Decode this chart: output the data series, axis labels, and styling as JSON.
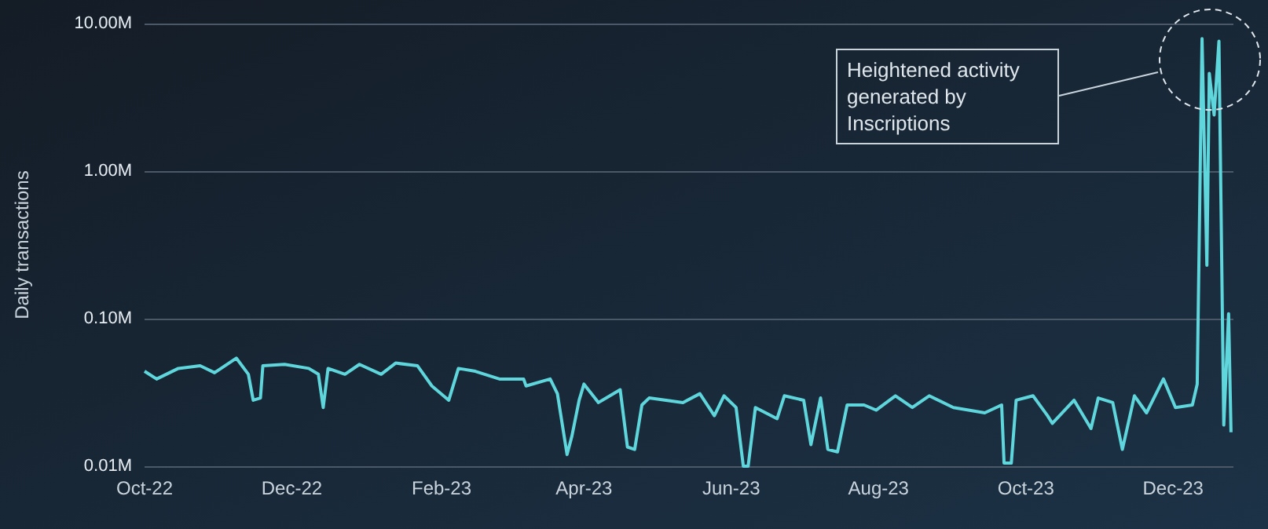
{
  "chart_data": {
    "type": "line",
    "ylabel": "Daily transactions",
    "log": true,
    "grid": "y",
    "marker": "none",
    "ylim": [
      0.01,
      10
    ],
    "yticks": [
      {
        "value": 0.01,
        "label": "0.01M"
      },
      {
        "value": 0.1,
        "label": "0.10M"
      },
      {
        "value": 1,
        "label": "1.00M"
      },
      {
        "value": 10,
        "label": "10.00M"
      }
    ],
    "xlim": [
      "2022-10-01",
      "2023-12-26"
    ],
    "xticks": [
      {
        "value": "2022-10-01",
        "label": "Oct-22"
      },
      {
        "value": "2022-12-01",
        "label": "Dec-22"
      },
      {
        "value": "2023-02-01",
        "label": "Feb-23"
      },
      {
        "value": "2023-04-01",
        "label": "Apr-23"
      },
      {
        "value": "2023-06-01",
        "label": "Jun-23"
      },
      {
        "value": "2023-08-01",
        "label": "Aug-23"
      },
      {
        "value": "2023-10-01",
        "label": "Oct-23"
      },
      {
        "value": "2023-12-01",
        "label": "Dec-23"
      }
    ],
    "annotations": [
      "Heightened activity\ngenerated by\nInscriptions"
    ],
    "series": [
      {
        "color": "#5ed6db",
        "x": [
          "2022-10-01",
          "2022-10-06",
          "2022-10-15",
          "2022-10-24",
          "2022-10-30",
          "2022-11-08",
          "2022-11-13",
          "2022-11-15",
          "2022-11-18",
          "2022-11-19",
          "2022-11-28",
          "2022-12-08",
          "2022-12-12",
          "2022-12-14",
          "2022-12-16",
          "2022-12-23",
          "2022-12-29",
          "2023-01-07",
          "2023-01-13",
          "2023-01-22",
          "2023-01-28",
          "2023-02-04",
          "2023-02-08",
          "2023-02-15",
          "2023-02-25",
          "2023-03-07",
          "2023-03-08",
          "2023-03-18",
          "2023-03-21",
          "2023-03-25",
          "2023-03-27",
          "2023-03-30",
          "2023-04-01",
          "2023-04-07",
          "2023-04-16",
          "2023-04-19",
          "2023-04-22",
          "2023-04-25",
          "2023-04-28",
          "2023-05-12",
          "2023-05-19",
          "2023-05-25",
          "2023-05-29",
          "2023-06-03",
          "2023-06-06",
          "2023-06-08",
          "2023-06-11",
          "2023-06-20",
          "2023-06-23",
          "2023-07-01",
          "2023-07-04",
          "2023-07-08",
          "2023-07-11",
          "2023-07-15",
          "2023-07-19",
          "2023-07-26",
          "2023-07-31",
          "2023-08-08",
          "2023-08-15",
          "2023-08-22",
          "2023-09-01",
          "2023-09-14",
          "2023-09-21",
          "2023-09-22",
          "2023-09-25",
          "2023-09-27",
          "2023-10-04",
          "2023-10-10",
          "2023-10-12",
          "2023-10-21",
          "2023-10-28",
          "2023-10-31",
          "2023-11-06",
          "2023-11-10",
          "2023-11-15",
          "2023-11-20",
          "2023-11-27",
          "2023-12-02",
          "2023-12-09",
          "2023-12-11",
          "2023-12-13",
          "2023-12-15",
          "2023-12-16",
          "2023-12-18",
          "2023-12-20",
          "2023-12-22",
          "2023-12-24",
          "2023-12-25"
        ],
        "values": [
          0.044,
          0.039,
          0.046,
          0.048,
          0.043,
          0.054,
          0.042,
          0.028,
          0.029,
          0.048,
          0.049,
          0.046,
          0.042,
          0.025,
          0.046,
          0.042,
          0.049,
          0.042,
          0.05,
          0.048,
          0.035,
          0.028,
          0.046,
          0.044,
          0.039,
          0.039,
          0.035,
          0.039,
          0.031,
          0.012,
          0.016,
          0.028,
          0.036,
          0.027,
          0.033,
          0.0135,
          0.013,
          0.026,
          0.029,
          0.027,
          0.031,
          0.022,
          0.03,
          0.025,
          0.01,
          0.01,
          0.025,
          0.021,
          0.03,
          0.028,
          0.014,
          0.029,
          0.013,
          0.0125,
          0.026,
          0.026,
          0.024,
          0.03,
          0.025,
          0.03,
          0.025,
          0.023,
          0.026,
          0.0105,
          0.0105,
          0.028,
          0.03,
          0.022,
          0.0195,
          0.028,
          0.018,
          0.029,
          0.027,
          0.013,
          0.03,
          0.023,
          0.039,
          0.025,
          0.026,
          0.036,
          7.9,
          0.23,
          4.6,
          2.4,
          7.6,
          0.019,
          0.108,
          0.017
        ]
      }
    ]
  }
}
